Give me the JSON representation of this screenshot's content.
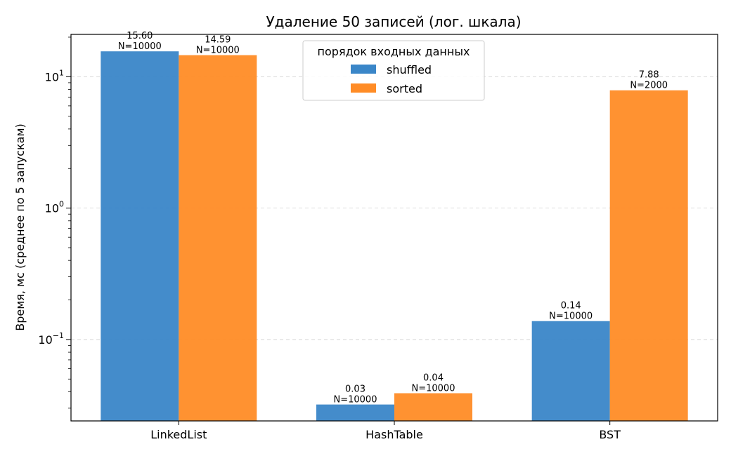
{
  "chart_data": {
    "type": "bar",
    "title": "Удаление 50 записей (лог. шкала)",
    "xlabel": "",
    "ylabel": "Время, мс (среднее по 5 запускам)",
    "yscale": "log",
    "ylim": [
      0.024,
      21
    ],
    "y_ticks": [
      {
        "value": 0.1,
        "base": "10",
        "exp": "−1"
      },
      {
        "value": 1,
        "base": "10",
        "exp": "0"
      },
      {
        "value": 10,
        "base": "10",
        "exp": "1"
      }
    ],
    "grid": "y-major",
    "categories": [
      "LinkedList",
      "HashTable",
      "BST"
    ],
    "legend": {
      "title": "порядок входных данных",
      "placement": "top-center"
    },
    "series": [
      {
        "name": "shuffled",
        "color": "#3a86c8",
        "values": [
          15.6,
          0.032,
          0.138
        ],
        "labels": [
          "15.60",
          "0.03",
          "0.14"
        ],
        "n_labels": [
          "N=10000",
          "N=10000",
          "N=10000"
        ]
      },
      {
        "name": "sorted",
        "color": "#ff8c26",
        "values": [
          14.59,
          0.039,
          7.88
        ],
        "labels": [
          "14.59",
          "0.04",
          "7.88"
        ],
        "n_labels": [
          "N=10000",
          "N=10000",
          "N=2000"
        ]
      }
    ]
  }
}
